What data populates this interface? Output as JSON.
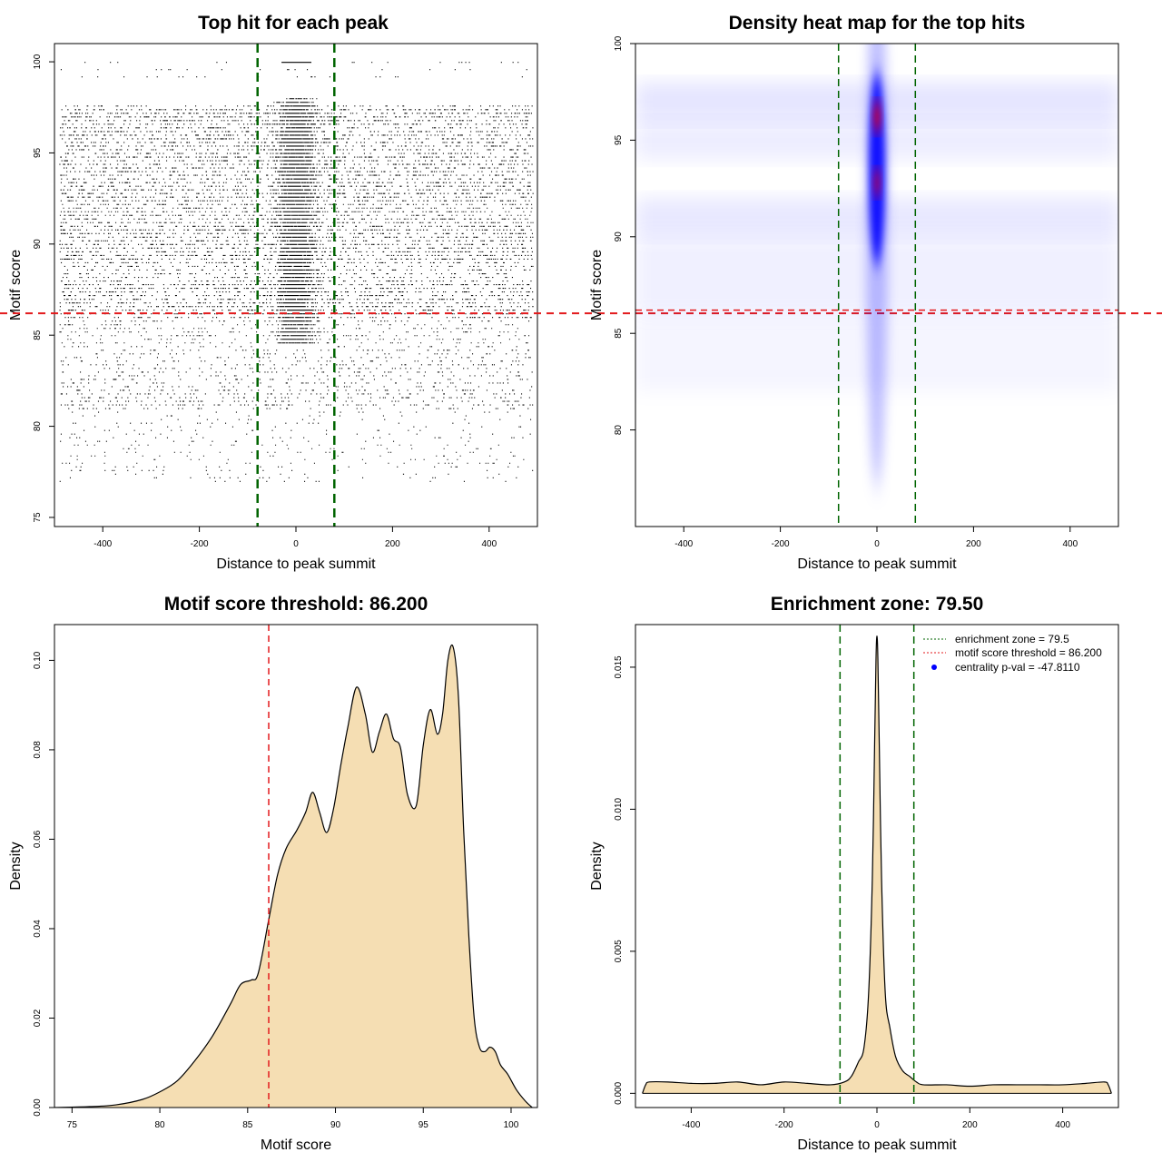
{
  "chart_data": [
    {
      "type": "scatter",
      "title": "Top hit for each peak",
      "xlabel": "Distance to peak summit",
      "ylabel": "Motif score",
      "xlim": [
        -500,
        500
      ],
      "ylim": [
        74.5,
        101
      ],
      "xticks": [
        -400,
        -200,
        0,
        200,
        400
      ],
      "yticks": [
        75,
        80,
        85,
        90,
        95,
        100
      ],
      "threshold_y": 86.2,
      "zone_x": [
        -79.5,
        79.5
      ],
      "point_color": "#000000",
      "threshold_color": "#e31a1c",
      "zone_color": "#006400"
    },
    {
      "type": "heatmap",
      "title": "Density heat map for the top hits",
      "xlabel": "Distance to peak summit",
      "ylabel": "Motif score",
      "xlim": [
        -500,
        500
      ],
      "ylim": [
        75,
        100
      ],
      "xticks": [
        -400,
        -200,
        0,
        200,
        400
      ],
      "yticks": [
        80,
        85,
        90,
        95,
        100
      ],
      "threshold_y": 86.2,
      "zone_x": [
        -79.5,
        79.5
      ],
      "low_color": "#ffffff",
      "mid_color": "#0000ff",
      "high_color": "#ff0000",
      "threshold_color": "#e31a1c",
      "zone_color": "#006400"
    },
    {
      "type": "area",
      "title": "Motif score threshold: 86.200",
      "xlabel": "Motif score",
      "ylabel": "Density",
      "xlim": [
        74,
        101.5
      ],
      "ylim": [
        0,
        0.108
      ],
      "xticks": [
        75,
        80,
        85,
        90,
        95,
        100
      ],
      "yticks": [
        0.0,
        0.02,
        0.04,
        0.06,
        0.08,
        0.1
      ],
      "ytick_labels": [
        "0.00",
        "0.02",
        "0.04",
        "0.06",
        "0.08",
        "0.10"
      ],
      "threshold_x": 86.2,
      "fill_color": "#f5deb3",
      "threshold_color": "#e31a1c",
      "x": [
        74,
        76,
        77.5,
        79,
        80,
        81,
        82,
        83,
        84,
        84.6,
        85.2,
        85.6,
        86.2,
        86.7,
        87.2,
        87.8,
        88.3,
        88.7,
        89.1,
        89.5,
        89.9,
        90.3,
        90.7,
        91.2,
        91.7,
        92.1,
        92.5,
        92.9,
        93.3,
        93.7,
        94.1,
        94.6,
        95.0,
        95.4,
        95.8,
        96.1,
        96.4,
        96.7,
        97.0,
        97.3,
        97.6,
        97.9,
        98.2,
        98.5,
        98.8,
        99.1,
        99.4,
        99.8,
        100.3,
        100.8,
        101.2
      ],
      "y": [
        0,
        0.0002,
        0.0006,
        0.0018,
        0.0035,
        0.006,
        0.0105,
        0.016,
        0.023,
        0.0275,
        0.0285,
        0.03,
        0.042,
        0.052,
        0.058,
        0.062,
        0.066,
        0.0705,
        0.066,
        0.0615,
        0.067,
        0.0765,
        0.085,
        0.094,
        0.088,
        0.0795,
        0.084,
        0.088,
        0.0825,
        0.0805,
        0.07,
        0.0675,
        0.081,
        0.089,
        0.0835,
        0.088,
        0.1,
        0.103,
        0.092,
        0.062,
        0.038,
        0.02,
        0.0135,
        0.0125,
        0.0135,
        0.0125,
        0.0095,
        0.0075,
        0.004,
        0.0015,
        0
      ]
    },
    {
      "type": "area",
      "title": "Enrichment zone: 79.50",
      "xlabel": "Distance to peak summit",
      "ylabel": "Density",
      "xlim": [
        -520,
        520
      ],
      "ylim": [
        -0.0005,
        0.0165
      ],
      "xticks": [
        -400,
        -200,
        0,
        200,
        400
      ],
      "yticks": [
        0.0,
        0.005,
        0.01,
        0.015
      ],
      "ytick_labels": [
        "0.000",
        "0.005",
        "0.010",
        "0.015"
      ],
      "zone_x": [
        -79.5,
        79.5
      ],
      "fill_color": "#f5deb3",
      "zone_color": "#006400",
      "x": [
        -505,
        -498,
        -490,
        -450,
        -400,
        -350,
        -300,
        -250,
        -200,
        -150,
        -100,
        -70,
        -55,
        -40,
        -28,
        -18,
        -10,
        -5,
        -2,
        0,
        2,
        5,
        10,
        18,
        28,
        40,
        55,
        70,
        85,
        100,
        150,
        200,
        250,
        300,
        350,
        400,
        450,
        490,
        498,
        505
      ],
      "y": [
        0,
        0.0003,
        0.0004,
        0.0004,
        0.00035,
        0.00035,
        0.0004,
        0.0003,
        0.0004,
        0.00035,
        0.0003,
        0.0004,
        0.0006,
        0.0011,
        0.0016,
        0.0035,
        0.0075,
        0.0123,
        0.0153,
        0.0161,
        0.0153,
        0.0123,
        0.0075,
        0.0035,
        0.0023,
        0.0013,
        0.0008,
        0.0006,
        0.0004,
        0.0003,
        0.0003,
        0.00025,
        0.0003,
        0.0003,
        0.0003,
        0.0003,
        0.00035,
        0.0004,
        0.0003,
        0
      ],
      "legend": [
        {
          "label": "enrichment zone = 79.5",
          "color": "#006400",
          "marker": "line"
        },
        {
          "label": "motif score threshold = 86.200",
          "color": "#e31a1c",
          "marker": "line"
        },
        {
          "label": "centrality p-val = -47.8110",
          "color": "#0000ff",
          "marker": "dot"
        }
      ]
    }
  ]
}
